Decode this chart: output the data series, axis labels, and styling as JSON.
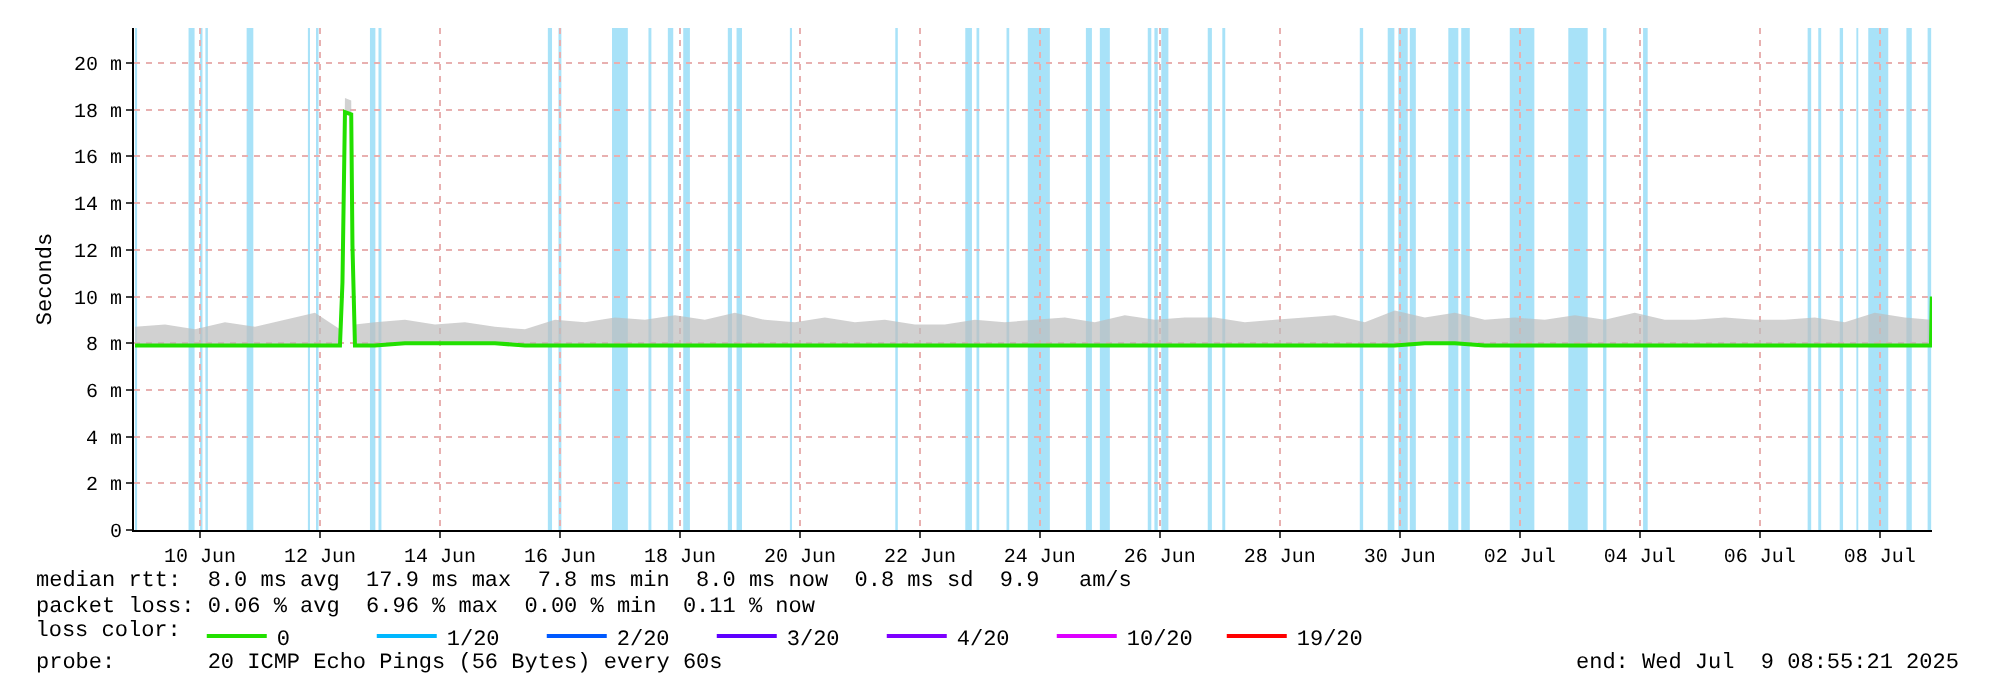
{
  "chart_data": {
    "type": "line",
    "ylabel": "Seconds",
    "legend_title": "loss color:",
    "xlim": [
      "2025-06-09T09:36",
      "2025-07-09T08:55"
    ],
    "xticks": [
      {
        "value": "2025-06-10T12:00",
        "label": "10 Jun"
      },
      {
        "value": "2025-06-12T12:00",
        "label": "12 Jun"
      },
      {
        "value": "2025-06-14T12:00",
        "label": "14 Jun"
      },
      {
        "value": "2025-06-16T12:00",
        "label": "16 Jun"
      },
      {
        "value": "2025-06-18T12:00",
        "label": "18 Jun"
      },
      {
        "value": "2025-06-20T12:00",
        "label": "20 Jun"
      },
      {
        "value": "2025-06-22T12:00",
        "label": "22 Jun"
      },
      {
        "value": "2025-06-24T12:00",
        "label": "24 Jun"
      },
      {
        "value": "2025-06-26T12:00",
        "label": "26 Jun"
      },
      {
        "value": "2025-06-28T12:00",
        "label": "28 Jun"
      },
      {
        "value": "2025-06-30T12:00",
        "label": "30 Jun"
      },
      {
        "value": "2025-07-02T12:00",
        "label": "02 Jul"
      },
      {
        "value": "2025-07-04T12:00",
        "label": "04 Jul"
      },
      {
        "value": "2025-07-06T12:00",
        "label": "06 Jul"
      },
      {
        "value": "2025-07-08T12:00",
        "label": "08 Jul"
      }
    ],
    "ylim": [
      0,
      21.5
    ],
    "yticks": [
      0,
      {
        "value": 2,
        "label": "2 m"
      },
      {
        "value": 4,
        "label": "4 m"
      },
      {
        "value": 6,
        "label": "6 m"
      },
      {
        "value": 8,
        "label": "8 m"
      },
      {
        "value": 10,
        "label": "10 m"
      },
      {
        "value": 12,
        "label": "12 m"
      },
      {
        "value": 14,
        "label": "14 m"
      },
      {
        "value": 16,
        "label": "16 m"
      },
      {
        "value": 18,
        "label": "18 m"
      },
      {
        "value": 20,
        "label": "20 m"
      }
    ],
    "grid": true,
    "legend": "bottom",
    "line_style": "solid",
    "marker": "none",
    "x": [
      "2025-06-09T10:00",
      "2025-06-09T22:00",
      "2025-06-10T10:00",
      "2025-06-10T22:00",
      "2025-06-11T10:00",
      "2025-06-11T22:00",
      "2025-06-12T10:00",
      "2025-06-12T20:00",
      "2025-06-12T21:00",
      "2025-06-12T22:00",
      "2025-06-13T00:30",
      "2025-06-13T01:00",
      "2025-06-13T02:00",
      "2025-06-13T10:00",
      "2025-06-13T22:00",
      "2025-06-14T10:00",
      "2025-06-14T22:00",
      "2025-06-15T10:00",
      "2025-06-15T22:00",
      "2025-06-16T10:00",
      "2025-06-16T22:00",
      "2025-06-17T10:00",
      "2025-06-17T22:00",
      "2025-06-18T10:00",
      "2025-06-18T22:00",
      "2025-06-19T10:00",
      "2025-06-19T22:00",
      "2025-06-20T10:00",
      "2025-06-20T22:00",
      "2025-06-21T10:00",
      "2025-06-21T22:00",
      "2025-06-22T10:00",
      "2025-06-22T22:00",
      "2025-06-23T10:00",
      "2025-06-23T22:00",
      "2025-06-24T10:00",
      "2025-06-24T22:00",
      "2025-06-25T10:00",
      "2025-06-25T22:00",
      "2025-06-26T10:00",
      "2025-06-26T22:00",
      "2025-06-27T10:00",
      "2025-06-27T22:00",
      "2025-06-28T10:00",
      "2025-06-28T22:00",
      "2025-06-29T10:00",
      "2025-06-29T22:00",
      "2025-06-30T10:00",
      "2025-06-30T22:00",
      "2025-07-01T10:00",
      "2025-07-01T22:00",
      "2025-07-02T10:00",
      "2025-07-02T22:00",
      "2025-07-03T10:00",
      "2025-07-03T22:00",
      "2025-07-04T10:00",
      "2025-07-04T22:00",
      "2025-07-05T10:00",
      "2025-07-05T22:00",
      "2025-07-06T10:00",
      "2025-07-06T22:00",
      "2025-07-07T10:00",
      "2025-07-07T22:00",
      "2025-07-08T10:00",
      "2025-07-08T22:00",
      "2025-07-09T08:30",
      "2025-07-09T08:50"
    ],
    "series": [
      {
        "name": "0",
        "color": "#22e000",
        "values": [
          7.9,
          7.9,
          7.9,
          7.9,
          7.9,
          7.9,
          7.9,
          7.9,
          10.6,
          17.9,
          17.8,
          12.2,
          7.9,
          7.9,
          8.0,
          8.0,
          8.0,
          8.0,
          7.9,
          7.9,
          7.9,
          7.9,
          7.9,
          7.9,
          7.9,
          7.9,
          7.9,
          7.9,
          7.9,
          7.9,
          7.9,
          7.9,
          7.9,
          7.9,
          7.9,
          7.9,
          7.9,
          7.9,
          7.9,
          7.9,
          7.9,
          7.9,
          7.9,
          7.9,
          7.9,
          7.9,
          7.9,
          7.9,
          8.0,
          8.0,
          7.9,
          7.9,
          7.9,
          7.9,
          7.9,
          7.9,
          7.9,
          7.9,
          7.9,
          7.9,
          7.9,
          7.9,
          7.9,
          7.9,
          7.9,
          7.9,
          10.0
        ],
        "lower": [
          7.9,
          7.9,
          7.9,
          7.9,
          7.9,
          7.9,
          7.9,
          7.9,
          10.6,
          17.9,
          17.8,
          12.2,
          7.9,
          7.9,
          8.0,
          8.0,
          8.0,
          8.0,
          7.9,
          7.9,
          7.9,
          7.9,
          7.9,
          7.9,
          7.9,
          7.9,
          7.9,
          7.9,
          7.9,
          7.9,
          7.9,
          7.9,
          7.9,
          7.9,
          7.9,
          7.9,
          7.9,
          7.9,
          7.9,
          7.9,
          7.9,
          7.9,
          7.9,
          7.9,
          7.9,
          7.9,
          7.9,
          7.9,
          8.0,
          8.0,
          7.9,
          7.9,
          7.9,
          7.9,
          7.9,
          7.9,
          7.9,
          7.9,
          7.9,
          7.9,
          7.9,
          7.9,
          7.9,
          7.9,
          7.9,
          7.9,
          7.9
        ],
        "upper": [
          8.7,
          8.8,
          8.6,
          8.9,
          8.7,
          9.0,
          9.3,
          8.6,
          10.8,
          18.5,
          18.4,
          12.4,
          8.8,
          8.9,
          9.0,
          8.8,
          8.9,
          8.7,
          8.6,
          9.0,
          8.9,
          9.1,
          9.0,
          9.2,
          9.0,
          9.3,
          9.0,
          8.9,
          9.1,
          8.9,
          9.0,
          8.8,
          8.8,
          9.0,
          8.9,
          9.0,
          9.1,
          8.9,
          9.2,
          9.0,
          9.1,
          9.1,
          8.9,
          9.0,
          9.1,
          9.2,
          8.9,
          9.4,
          9.1,
          9.3,
          9.0,
          9.1,
          9.0,
          9.2,
          9.0,
          9.3,
          9.0,
          9.0,
          9.1,
          9.0,
          9.0,
          9.1,
          8.9,
          9.3,
          9.1,
          9.0,
          10.0
        ]
      },
      {
        "name": "1/20",
        "color": "#00b8ff",
        "values": [
          null,
          null,
          null,
          null,
          null,
          null,
          null,
          null,
          null,
          null,
          null,
          null,
          null,
          null,
          null,
          null,
          null,
          null,
          null,
          null,
          null,
          null,
          null,
          null,
          null,
          null,
          null,
          null,
          null,
          null,
          null,
          null,
          null,
          null,
          null,
          null,
          null,
          null,
          null,
          null,
          null,
          null,
          null,
          null,
          null,
          null,
          null,
          null,
          null,
          null,
          null,
          null,
          null,
          null,
          null,
          null,
          null,
          null,
          null,
          null,
          null,
          null,
          null,
          null,
          null,
          null,
          null
        ]
      },
      {
        "name": "2/20",
        "color": "#0059ff",
        "values": [
          null,
          null,
          null,
          null,
          null,
          null,
          null,
          null,
          null,
          null,
          null,
          null,
          null,
          null,
          null,
          null,
          null,
          null,
          null,
          null,
          null,
          null,
          null,
          null,
          null,
          null,
          null,
          null,
          null,
          null,
          null,
          null,
          null,
          null,
          null,
          null,
          null,
          null,
          null,
          null,
          null,
          null,
          null,
          null,
          null,
          null,
          null,
          null,
          null,
          null,
          null,
          null,
          null,
          null,
          null,
          null,
          null,
          null,
          null,
          null,
          null,
          null,
          null,
          null,
          null,
          null,
          null
        ]
      },
      {
        "name": "3/20",
        "color": "#5e00ff",
        "values": [
          null,
          null,
          null,
          null,
          null,
          null,
          null,
          null,
          null,
          null,
          null,
          null,
          null,
          null,
          null,
          null,
          null,
          null,
          null,
          null,
          null,
          null,
          null,
          null,
          null,
          null,
          null,
          null,
          null,
          null,
          null,
          null,
          null,
          null,
          null,
          null,
          null,
          null,
          null,
          null,
          null,
          null,
          null,
          null,
          null,
          null,
          null,
          null,
          null,
          null,
          null,
          null,
          null,
          null,
          null,
          null,
          null,
          null,
          null,
          null,
          null,
          null,
          null,
          null,
          null,
          null,
          null
        ]
      },
      {
        "name": "4/20",
        "color": "#7e00ff",
        "values": [
          null,
          null,
          null,
          null,
          null,
          null,
          null,
          null,
          null,
          null,
          null,
          null,
          null,
          null,
          null,
          null,
          null,
          null,
          null,
          null,
          null,
          null,
          null,
          null,
          null,
          null,
          null,
          null,
          null,
          null,
          null,
          null,
          null,
          null,
          null,
          null,
          null,
          null,
          null,
          null,
          null,
          null,
          null,
          null,
          null,
          null,
          null,
          null,
          null,
          null,
          null,
          null,
          null,
          null,
          null,
          null,
          null,
          null,
          null,
          null,
          null,
          null,
          null,
          null,
          null,
          null,
          null
        ]
      },
      {
        "name": "10/20",
        "color": "#dd00ff",
        "values": [
          null,
          null,
          null,
          null,
          null,
          null,
          null,
          null,
          null,
          null,
          null,
          null,
          null,
          null,
          null,
          null,
          null,
          null,
          null,
          null,
          null,
          null,
          null,
          null,
          null,
          null,
          null,
          null,
          null,
          null,
          null,
          null,
          null,
          null,
          null,
          null,
          null,
          null,
          null,
          null,
          null,
          null,
          null,
          null,
          null,
          null,
          null,
          null,
          null,
          null,
          null,
          null,
          null,
          null,
          null,
          null,
          null,
          null,
          null,
          null,
          null,
          null,
          null,
          null,
          null,
          null,
          null
        ]
      },
      {
        "name": "19/20",
        "color": "#ff0000",
        "values": [
          null,
          null,
          null,
          null,
          null,
          null,
          null,
          null,
          null,
          null,
          null,
          null,
          null,
          null,
          null,
          null,
          null,
          null,
          null,
          null,
          null,
          null,
          null,
          null,
          null,
          null,
          null,
          null,
          null,
          null,
          null,
          null,
          null,
          null,
          null,
          null,
          null,
          null,
          null,
          null,
          null,
          null,
          null,
          null,
          null,
          null,
          null,
          null,
          null,
          null,
          null,
          null,
          null,
          null,
          null,
          null,
          null,
          null,
          null,
          null,
          null,
          null,
          null,
          null,
          null,
          null,
          null
        ]
      }
    ],
    "bands": [
      {
        "axis": "x",
        "from": "2025-06-09T10:00",
        "to": "2025-06-09T10:50",
        "color": "#a8e2f8"
      },
      {
        "axis": "x",
        "from": "2025-06-10T07:25",
        "to": "2025-06-10T09:50",
        "color": "#a8e2f8"
      },
      {
        "axis": "x",
        "from": "2025-06-10T12:00",
        "to": "2025-06-10T13:00",
        "color": "#a8e2f8"
      },
      {
        "axis": "x",
        "from": "2025-06-10T14:10",
        "to": "2025-06-10T15:10",
        "color": "#a8e2f8"
      },
      {
        "axis": "x",
        "from": "2025-06-11T06:40",
        "to": "2025-06-11T09:20",
        "color": "#a8e2f8"
      },
      {
        "axis": "x",
        "from": "2025-06-12T07:10",
        "to": "2025-06-12T08:00",
        "color": "#a8e2f8"
      },
      {
        "axis": "x",
        "from": "2025-06-12T10:25",
        "to": "2025-06-12T11:25",
        "color": "#a8e2f8"
      },
      {
        "axis": "x",
        "from": "2025-06-13T08:00",
        "to": "2025-06-13T10:10",
        "color": "#a8e2f8"
      },
      {
        "axis": "x",
        "from": "2025-06-13T11:25",
        "to": "2025-06-13T12:35",
        "color": "#a8e2f8"
      },
      {
        "axis": "x",
        "from": "2025-06-16T07:10",
        "to": "2025-06-16T08:50",
        "color": "#a8e2f8"
      },
      {
        "axis": "x",
        "from": "2025-06-16T11:25",
        "to": "2025-06-16T12:35",
        "color": "#a8e2f8"
      },
      {
        "axis": "x",
        "from": "2025-06-17T08:50",
        "to": "2025-06-17T15:10",
        "color": "#a8e2f8"
      },
      {
        "axis": "x",
        "from": "2025-06-17T23:25",
        "to": "2025-06-18T00:35",
        "color": "#a8e2f8"
      },
      {
        "axis": "x",
        "from": "2025-06-18T07:10",
        "to": "2025-06-18T09:20",
        "color": "#a8e2f8"
      },
      {
        "axis": "x",
        "from": "2025-06-18T13:20",
        "to": "2025-06-18T16:00",
        "color": "#a8e2f8"
      },
      {
        "axis": "x",
        "from": "2025-06-19T07:10",
        "to": "2025-06-19T08:50",
        "color": "#a8e2f8"
      },
      {
        "axis": "x",
        "from": "2025-06-19T10:40",
        "to": "2025-06-19T12:50",
        "color": "#a8e2f8"
      },
      {
        "axis": "x",
        "from": "2025-06-20T08:00",
        "to": "2025-06-20T08:50",
        "color": "#a8e2f8"
      },
      {
        "axis": "x",
        "from": "2025-06-22T02:10",
        "to": "2025-06-22T03:10",
        "color": "#a8e2f8"
      },
      {
        "axis": "x",
        "from": "2025-06-23T06:10",
        "to": "2025-06-23T08:50",
        "color": "#a8e2f8"
      },
      {
        "axis": "x",
        "from": "2025-06-23T10:40",
        "to": "2025-06-23T11:45",
        "color": "#a8e2f8"
      },
      {
        "axis": "x",
        "from": "2025-06-23T22:40",
        "to": "2025-06-23T23:45",
        "color": "#a8e2f8"
      },
      {
        "axis": "x",
        "from": "2025-06-24T07:10",
        "to": "2025-06-24T16:00",
        "color": "#a8e2f8"
      },
      {
        "axis": "x",
        "from": "2025-06-25T06:25",
        "to": "2025-06-25T08:50",
        "color": "#a8e2f8"
      },
      {
        "axis": "x",
        "from": "2025-06-25T12:00",
        "to": "2025-06-25T16:00",
        "color": "#a8e2f8"
      },
      {
        "axis": "x",
        "from": "2025-06-26T07:10",
        "to": "2025-06-26T08:35",
        "color": "#a8e2f8"
      },
      {
        "axis": "x",
        "from": "2025-06-26T09:50",
        "to": "2025-06-26T11:10",
        "color": "#a8e2f8"
      },
      {
        "axis": "x",
        "from": "2025-06-26T12:35",
        "to": "2025-06-26T15:25",
        "color": "#a8e2f8"
      },
      {
        "axis": "x",
        "from": "2025-06-27T07:10",
        "to": "2025-06-27T08:50",
        "color": "#a8e2f8"
      },
      {
        "axis": "x",
        "from": "2025-06-27T13:00",
        "to": "2025-06-27T14:10",
        "color": "#a8e2f8"
      },
      {
        "axis": "x",
        "from": "2025-06-29T20:00",
        "to": "2025-06-29T21:20",
        "color": "#a8e2f8"
      },
      {
        "axis": "x",
        "from": "2025-06-30T07:10",
        "to": "2025-06-30T09:50",
        "color": "#a8e2f8"
      },
      {
        "axis": "x",
        "from": "2025-06-30T11:25",
        "to": "2025-06-30T15:10",
        "color": "#a8e2f8"
      },
      {
        "axis": "x",
        "from": "2025-06-30T16:00",
        "to": "2025-06-30T18:25",
        "color": "#a8e2f8"
      },
      {
        "axis": "x",
        "from": "2025-07-01T07:25",
        "to": "2025-07-01T11:25",
        "color": "#a8e2f8"
      },
      {
        "axis": "x",
        "from": "2025-07-01T12:35",
        "to": "2025-07-01T16:00",
        "color": "#a8e2f8"
      },
      {
        "axis": "x",
        "from": "2025-07-02T08:00",
        "to": "2025-07-02T17:50",
        "color": "#a8e2f8"
      },
      {
        "axis": "x",
        "from": "2025-07-03T07:25",
        "to": "2025-07-03T15:10",
        "color": "#a8e2f8"
      },
      {
        "axis": "x",
        "from": "2025-07-03T21:20",
        "to": "2025-07-03T22:40",
        "color": "#a8e2f8"
      },
      {
        "axis": "x",
        "from": "2025-07-04T13:20",
        "to": "2025-07-04T15:10",
        "color": "#a8e2f8"
      },
      {
        "axis": "x",
        "from": "2025-07-07T07:10",
        "to": "2025-07-07T08:35",
        "color": "#a8e2f8"
      },
      {
        "axis": "x",
        "from": "2025-07-07T11:25",
        "to": "2025-07-07T12:35",
        "color": "#a8e2f8"
      },
      {
        "axis": "x",
        "from": "2025-07-07T20:00",
        "to": "2025-07-07T21:20",
        "color": "#a8e2f8"
      },
      {
        "axis": "x",
        "from": "2025-07-08T02:40",
        "to": "2025-07-08T03:25",
        "color": "#a8e2f8"
      },
      {
        "axis": "x",
        "from": "2025-07-08T07:25",
        "to": "2025-07-08T15:25",
        "color": "#a8e2f8"
      },
      {
        "axis": "x",
        "from": "2025-07-08T22:40",
        "to": "2025-07-09T00:50",
        "color": "#a8e2f8"
      },
      {
        "axis": "x",
        "from": "2025-07-09T07:10",
        "to": "2025-07-09T08:35",
        "color": "#a8e2f8"
      }
    ],
    "annotations": [
      "median rtt:  8.0 ms avg  17.9 ms max  7.8 ms min  8.0 ms now  0.8 ms sd  9.9   am/s",
      "packet loss: 0.06 % avg  6.96 % max  0.00 % min  0.11 % now",
      "probe:       20 ICMP Echo Pings (56 Bytes) every 60s",
      "end: Wed Jul  9 08:55:21 2025"
    ]
  }
}
